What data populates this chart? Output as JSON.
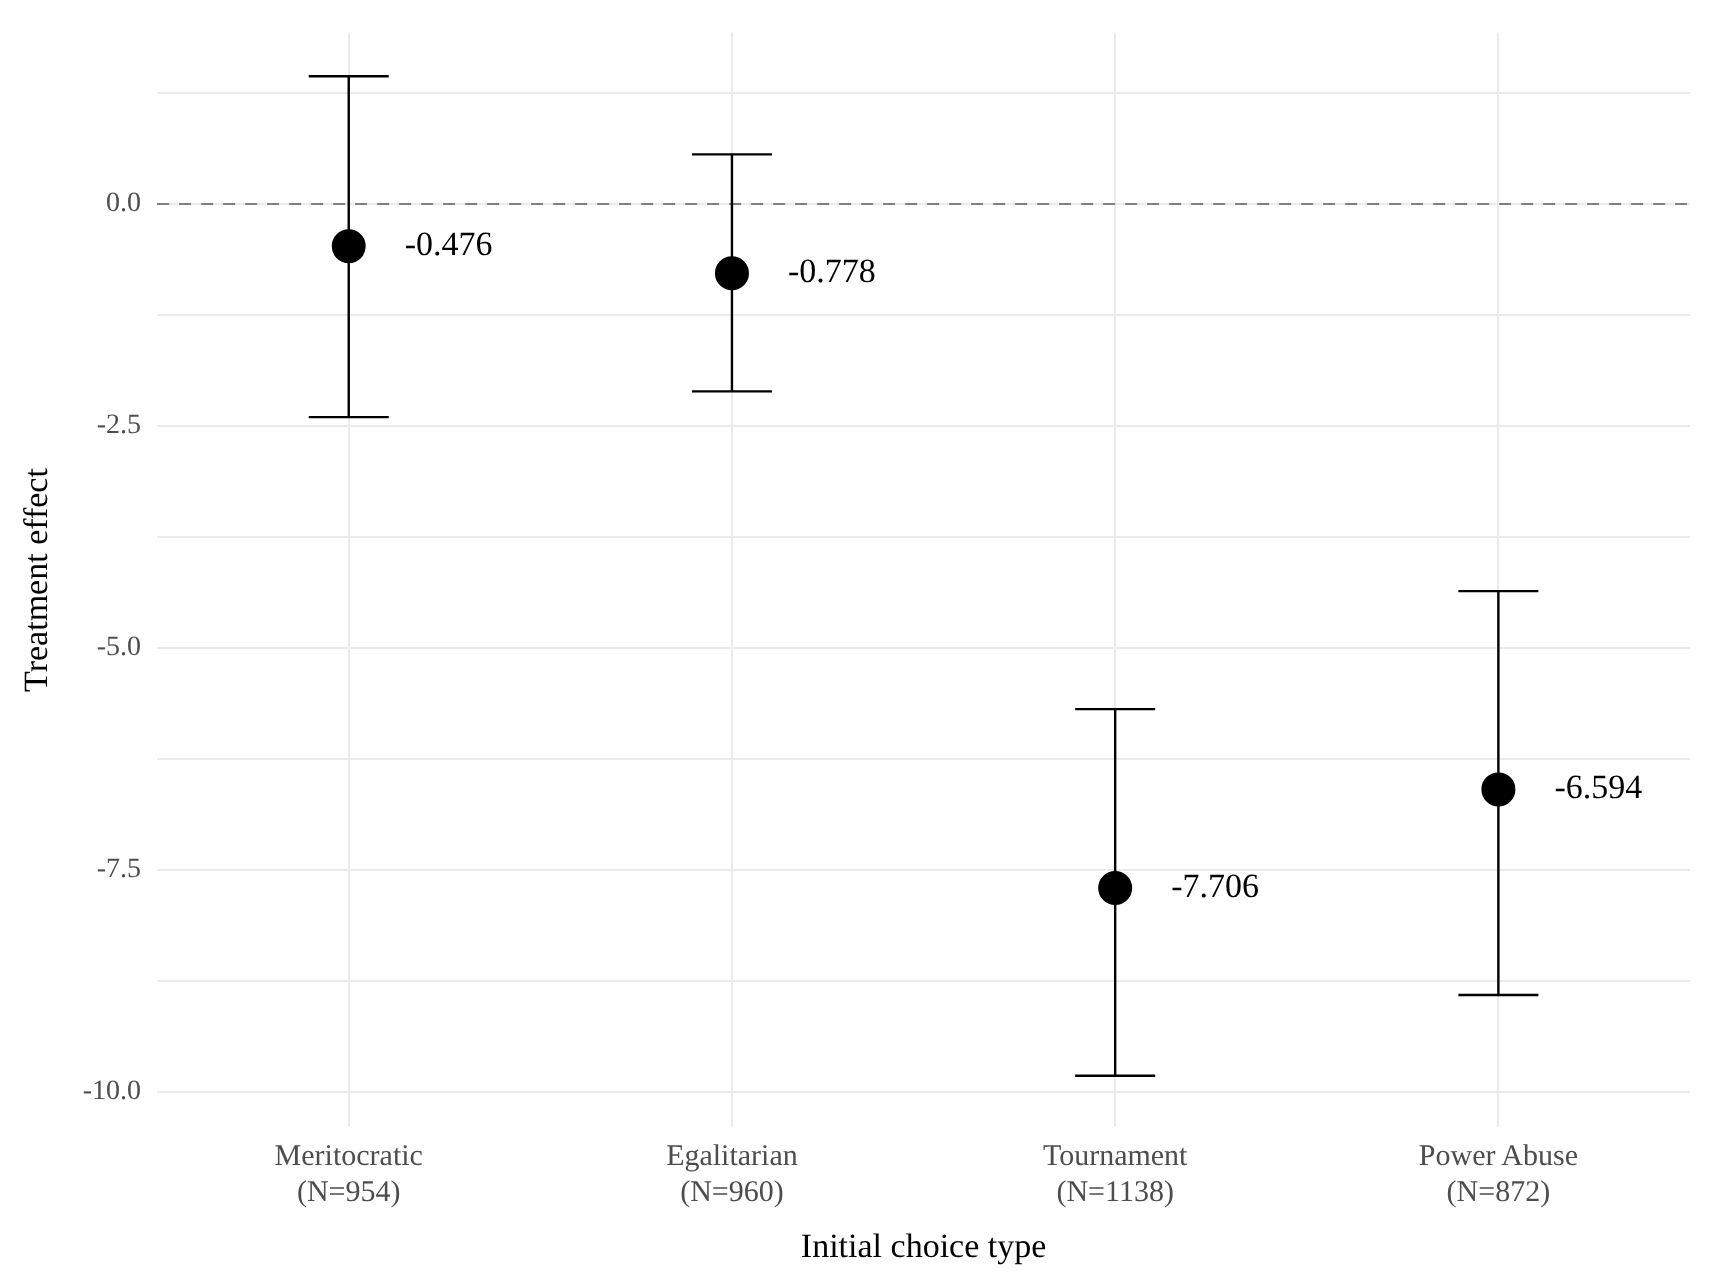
{
  "chart_data": {
    "type": "scatter",
    "xlabel": "Initial choice type",
    "ylabel": "Treatment effect",
    "categories": [
      "Meritocratic\n(N=954)",
      "Egalitarian\n(N=960)",
      "Tournament\n(N=1138)",
      "Power Abuse\n(N=872)"
    ],
    "values": [
      -0.476,
      -0.778,
      -7.706,
      -6.594
    ],
    "errors": [
      [
        -2.4,
        1.44
      ],
      [
        -2.11,
        0.56
      ],
      [
        -9.82,
        -5.69
      ],
      [
        -8.91,
        -4.36
      ]
    ],
    "value_labels": [
      "-0.476",
      "-0.778",
      "-7.706",
      "-6.594"
    ],
    "color": "#000000",
    "marker": "circle",
    "ylim": [
      -10.4,
      1.93
    ],
    "yticks": [
      {
        "value": -10,
        "label": "-10.0"
      },
      {
        "value": -8.75,
        "label": null
      },
      {
        "value": -7.5,
        "label": "-7.5"
      },
      {
        "value": -6.25,
        "label": null
      },
      {
        "value": -5,
        "label": "-5.0"
      },
      {
        "value": -3.75,
        "label": null
      },
      {
        "value": -2.5,
        "label": "-2.5"
      },
      {
        "value": -1.25,
        "label": null
      },
      {
        "value": 0,
        "label": "0.0"
      },
      {
        "value": 1.25,
        "label": null
      }
    ],
    "ref_lines": [
      {
        "axis": "y",
        "value": 0,
        "color": "#808080",
        "line_style": "dashed"
      }
    ],
    "grid": true,
    "legend": false
  }
}
